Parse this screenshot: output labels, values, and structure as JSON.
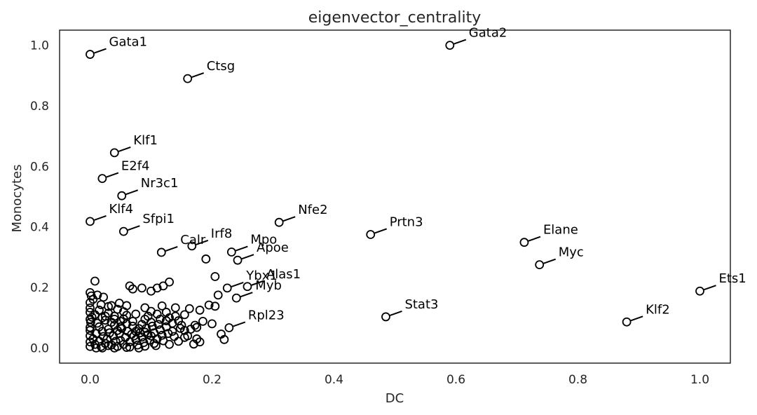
{
  "chart_data": {
    "type": "scatter",
    "title": "eigenvector_centrality",
    "xlabel": "DC",
    "ylabel": "Monocytes",
    "xlim": [
      -0.05,
      1.05
    ],
    "ylim": [
      -0.05,
      1.05
    ],
    "xticks": [
      0.0,
      0.2,
      0.4,
      0.6,
      0.8,
      1.0
    ],
    "xtick_labels": [
      "0.0",
      "0.2",
      "0.4",
      "0.6",
      "0.8",
      "1.0"
    ],
    "yticks": [
      0.0,
      0.2,
      0.4,
      0.6,
      0.8,
      1.0
    ],
    "ytick_labels": [
      "0.0",
      "0.2",
      "0.4",
      "0.6",
      "0.8",
      "1.0"
    ],
    "grid": false,
    "legend": "none",
    "labeled_points": [
      {
        "label": "Gata1",
        "x": 0.0,
        "y": 0.97
      },
      {
        "label": "Gata2",
        "x": 0.59,
        "y": 1.0
      },
      {
        "label": "Ctsg",
        "x": 0.16,
        "y": 0.89
      },
      {
        "label": "Klf1",
        "x": 0.04,
        "y": 0.645
      },
      {
        "label": "E2f4",
        "x": 0.02,
        "y": 0.56
      },
      {
        "label": "Nr3c1",
        "x": 0.052,
        "y": 0.503
      },
      {
        "label": "Klf4",
        "x": 0.0,
        "y": 0.418
      },
      {
        "label": "Sfpi1",
        "x": 0.055,
        "y": 0.385
      },
      {
        "label": "Nfe2",
        "x": 0.31,
        "y": 0.415
      },
      {
        "label": "Prtn3",
        "x": 0.46,
        "y": 0.375
      },
      {
        "label": "Calr",
        "x": 0.117,
        "y": 0.316
      },
      {
        "label": "Irf8",
        "x": 0.167,
        "y": 0.337
      },
      {
        "label": "Mpo",
        "x": 0.232,
        "y": 0.317
      },
      {
        "label": "Apoe",
        "x": 0.242,
        "y": 0.29
      },
      {
        "label": "Elane",
        "x": 0.712,
        "y": 0.349
      },
      {
        "label": "Myc",
        "x": 0.737,
        "y": 0.275
      },
      {
        "label": "Ybx1",
        "x": 0.225,
        "y": 0.198
      },
      {
        "label": "Alas1",
        "x": 0.258,
        "y": 0.203
      },
      {
        "label": "Myb",
        "x": 0.24,
        "y": 0.165
      },
      {
        "label": "Ets1",
        "x": 1.0,
        "y": 0.188
      },
      {
        "label": "Stat3",
        "x": 0.485,
        "y": 0.103
      },
      {
        "label": "Klf2",
        "x": 0.88,
        "y": 0.086
      },
      {
        "label": "Rpl23",
        "x": 0.228,
        "y": 0.067
      }
    ],
    "points": [
      [
        0.008,
        0.221
      ],
      [
        0.0,
        0.183
      ],
      [
        0.002,
        0.172
      ],
      [
        0.005,
        0.161
      ],
      [
        0.0,
        0.15
      ],
      [
        0.0,
        0.132
      ],
      [
        0.0,
        0.118
      ],
      [
        0.003,
        0.102
      ],
      [
        0.001,
        0.085
      ],
      [
        0.0,
        0.068
      ],
      [
        0.012,
        0.175
      ],
      [
        0.022,
        0.168
      ],
      [
        0.018,
        0.143
      ],
      [
        0.03,
        0.137
      ],
      [
        0.035,
        0.14
      ],
      [
        0.048,
        0.148
      ],
      [
        0.055,
        0.12
      ],
      [
        0.06,
        0.108
      ],
      [
        0.025,
        0.105
      ],
      [
        0.04,
        0.095
      ],
      [
        0.07,
        0.195
      ],
      [
        0.065,
        0.205
      ],
      [
        0.085,
        0.198
      ],
      [
        0.1,
        0.188
      ],
      [
        0.11,
        0.198
      ],
      [
        0.12,
        0.205
      ],
      [
        0.13,
        0.218
      ],
      [
        0.09,
        0.133
      ],
      [
        0.1,
        0.121
      ],
      [
        0.118,
        0.139
      ],
      [
        0.125,
        0.118
      ],
      [
        0.14,
        0.133
      ],
      [
        0.155,
        0.11
      ],
      [
        0.163,
        0.13
      ],
      [
        0.18,
        0.125
      ],
      [
        0.19,
        0.294
      ],
      [
        0.205,
        0.236
      ],
      [
        0.195,
        0.142
      ],
      [
        0.21,
        0.175
      ],
      [
        0.205,
        0.138
      ],
      [
        0.185,
        0.088
      ],
      [
        0.2,
        0.08
      ],
      [
        0.175,
        0.068
      ],
      [
        0.155,
        0.058
      ],
      [
        0.165,
        0.062
      ],
      [
        0.215,
        0.046
      ],
      [
        0.22,
        0.028
      ],
      [
        0.18,
        0.02
      ],
      [
        0.17,
        0.013
      ],
      [
        0.145,
        0.022
      ],
      [
        0.13,
        0.012
      ],
      [
        0.12,
        0.024
      ],
      [
        0.11,
        0.03
      ],
      [
        0.1,
        0.04
      ],
      [
        0.09,
        0.052
      ],
      [
        0.08,
        0.064
      ],
      [
        0.07,
        0.072
      ],
      [
        0.06,
        0.08
      ],
      [
        0.05,
        0.088
      ],
      [
        0.04,
        0.075
      ],
      [
        0.03,
        0.062
      ],
      [
        0.02,
        0.055
      ],
      [
        0.01,
        0.048
      ],
      [
        0.0,
        0.04
      ],
      [
        0.005,
        0.03
      ],
      [
        0.015,
        0.022
      ],
      [
        0.025,
        0.015
      ],
      [
        0.035,
        0.01
      ],
      [
        0.045,
        0.005
      ],
      [
        0.055,
        0.012
      ],
      [
        0.065,
        0.02
      ],
      [
        0.075,
        0.028
      ],
      [
        0.085,
        0.036
      ],
      [
        0.095,
        0.044
      ],
      [
        0.105,
        0.05
      ],
      [
        0.115,
        0.06
      ],
      [
        0.125,
        0.07
      ],
      [
        0.135,
        0.082
      ],
      [
        0.145,
        0.09
      ],
      [
        0.13,
        0.1
      ],
      [
        0.115,
        0.095
      ],
      [
        0.1,
        0.085
      ],
      [
        0.085,
        0.078
      ],
      [
        0.07,
        0.088
      ],
      [
        0.055,
        0.096
      ],
      [
        0.04,
        0.105
      ],
      [
        0.025,
        0.092
      ],
      [
        0.012,
        0.082
      ],
      [
        0.0,
        0.058
      ],
      [
        0.0,
        0.02
      ],
      [
        0.0,
        0.005
      ],
      [
        0.008,
        0.012
      ],
      [
        0.018,
        0.005
      ],
      [
        0.028,
        0.03
      ],
      [
        0.038,
        0.04
      ],
      [
        0.048,
        0.048
      ],
      [
        0.058,
        0.035
      ],
      [
        0.068,
        0.045
      ],
      [
        0.078,
        0.01
      ],
      [
        0.088,
        0.018
      ],
      [
        0.098,
        0.026
      ],
      [
        0.108,
        0.008
      ],
      [
        0.118,
        0.042
      ],
      [
        0.128,
        0.048
      ],
      [
        0.138,
        0.038
      ],
      [
        0.148,
        0.065
      ],
      [
        0.16,
        0.04
      ],
      [
        0.172,
        0.075
      ],
      [
        0.175,
        0.03
      ],
      [
        0.15,
        0.075
      ],
      [
        0.022,
        0.038
      ],
      [
        0.032,
        0.05
      ],
      [
        0.042,
        0.022
      ],
      [
        0.052,
        0.065
      ],
      [
        0.062,
        0.055
      ],
      [
        0.072,
        0.04
      ],
      [
        0.082,
        0.05
      ],
      [
        0.092,
        0.065
      ],
      [
        0.102,
        0.072
      ],
      [
        0.112,
        0.078
      ],
      [
        0.03,
        0.115
      ],
      [
        0.045,
        0.128
      ],
      [
        0.015,
        0.125
      ],
      [
        0.06,
        0.14
      ],
      [
        0.075,
        0.112
      ],
      [
        0.095,
        0.105
      ],
      [
        0.11,
        0.112
      ],
      [
        0.14,
        0.105
      ],
      [
        0.0,
        0.095
      ],
      [
        0.015,
        0.07
      ],
      [
        0.02,
        0.0
      ],
      [
        0.04,
        0.0
      ],
      [
        0.06,
        0.002
      ],
      [
        0.08,
        0.0
      ],
      [
        0.01,
        0.0
      ],
      [
        0.03,
        0.008
      ],
      [
        0.05,
        0.025
      ],
      [
        0.065,
        0.003
      ],
      [
        0.09,
        0.006
      ],
      [
        0.105,
        0.015
      ],
      [
        0.135,
        0.055
      ],
      [
        0.155,
        0.035
      ],
      [
        0.125,
        0.09
      ],
      [
        0.09,
        0.095
      ],
      [
        0.05,
        0.07
      ],
      [
        0.035,
        0.085
      ],
      [
        0.02,
        0.1
      ],
      [
        0.008,
        0.11
      ],
      [
        0.045,
        0.058
      ],
      [
        0.075,
        0.055
      ]
    ]
  }
}
